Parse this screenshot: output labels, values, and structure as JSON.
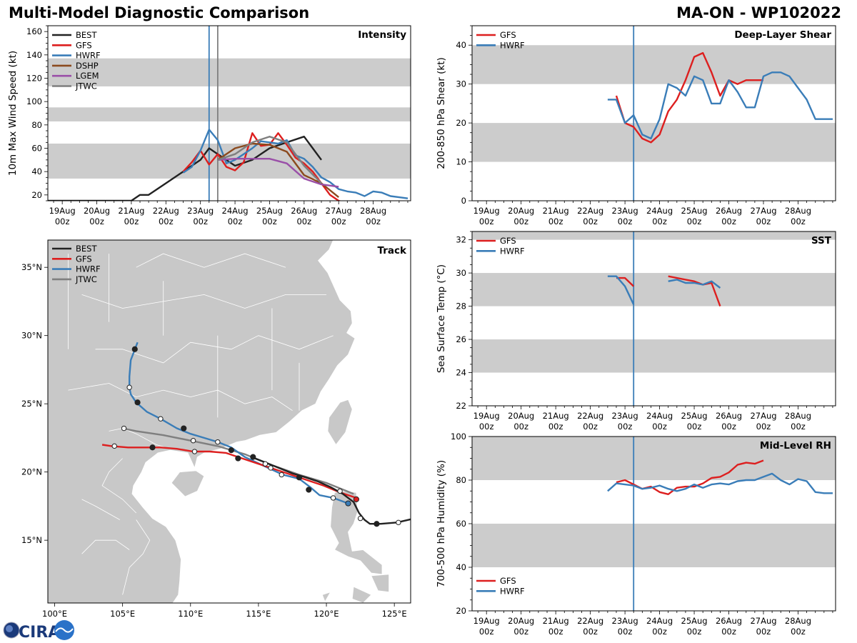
{
  "header": {
    "title": "Multi-Model Diagnostic Comparison",
    "storm": "MA-ON - WP102022"
  },
  "logo": {
    "text": "CIRA"
  },
  "colors": {
    "BEST": "#222222",
    "GFS": "#dd1f1f",
    "HWRF": "#3a7db8",
    "DSHP": "#8b4a1e",
    "LGEM": "#9a4fa8",
    "JTWC": "#7f7f7f",
    "band": "#cccccc",
    "land": "#c8c8c8",
    "border": "#ffffff"
  },
  "time_axis": {
    "ticks": [
      0,
      24,
      48,
      72,
      96,
      120,
      144,
      168,
      192,
      216
    ],
    "labels": [
      [
        "19Aug",
        "00z"
      ],
      [
        "20Aug",
        "00z"
      ],
      [
        "21Aug",
        "00z"
      ],
      [
        "22Aug",
        "00z"
      ],
      [
        "23Aug",
        "00z"
      ],
      [
        "24Aug",
        "00z"
      ],
      [
        "25Aug",
        "00z"
      ],
      [
        "26Aug",
        "00z"
      ],
      [
        "27Aug",
        "00z"
      ],
      [
        "28Aug",
        "00z"
      ]
    ],
    "range": [
      -10,
      242
    ]
  },
  "chart_data": [
    {
      "id": "intensity",
      "type": "line",
      "title": "Intensity",
      "ylabel": "10m Max Wind Speed (kt)",
      "xlabel": "",
      "ylim": [
        15,
        165
      ],
      "yticks": [
        20,
        40,
        60,
        80,
        100,
        120,
        140,
        160
      ],
      "bands": [
        [
          34,
          64
        ],
        [
          83,
          95
        ],
        [
          113,
          137
        ]
      ],
      "vlines": [
        {
          "x": 102,
          "color": "HWRF"
        },
        {
          "x": 108,
          "color": "JTWC"
        }
      ],
      "legend": "top-left",
      "series": [
        {
          "name": "BEST",
          "x": [
            -12,
            0,
            24,
            42,
            48,
            54,
            60,
            72,
            84,
            96,
            102,
            108,
            120,
            132,
            144,
            156,
            168,
            174,
            180
          ],
          "y": [
            15,
            15,
            15,
            15,
            15,
            20,
            20,
            30,
            40,
            50,
            60,
            55,
            45,
            50,
            60,
            65,
            70,
            60,
            50
          ]
        },
        {
          "name": "GFS",
          "x": [
            84,
            90,
            96,
            102,
            108,
            114,
            120,
            126,
            132,
            138,
            144,
            150,
            156,
            162,
            168,
            174,
            180,
            186,
            192,
            198
          ],
          "y": [
            40,
            48,
            58,
            46,
            55,
            44,
            41,
            48,
            73,
            62,
            63,
            73,
            63,
            52,
            47,
            40,
            30,
            20,
            15,
            13
          ]
        },
        {
          "name": "HWRF",
          "x": [
            84,
            90,
            96,
            102,
            108,
            114,
            120,
            126,
            132,
            138,
            144,
            150,
            156,
            162,
            168,
            174,
            180,
            186,
            192,
            198,
            204,
            210,
            216,
            222,
            228,
            234,
            240
          ],
          "y": [
            39,
            44,
            58,
            76,
            67,
            47,
            50,
            55,
            60,
            66,
            65,
            64,
            67,
            54,
            51,
            44,
            35,
            31,
            25,
            23,
            22,
            19,
            23,
            22,
            19,
            18,
            17
          ]
        },
        {
          "name": "DSHP",
          "x": [
            108,
            120,
            132,
            144,
            156,
            168,
            180,
            192
          ],
          "y": [
            50,
            60,
            64,
            63,
            57,
            37,
            30,
            18
          ]
        },
        {
          "name": "LGEM",
          "x": [
            108,
            120,
            132,
            144,
            156,
            168,
            180,
            192
          ],
          "y": [
            50,
            51,
            51,
            51,
            47,
            34,
            29,
            27
          ]
        },
        {
          "name": "JTWC",
          "x": [
            108,
            120,
            132,
            144,
            156,
            168,
            180
          ],
          "y": [
            50,
            55,
            65,
            70,
            65,
            45,
            30
          ]
        }
      ]
    },
    {
      "id": "shear",
      "type": "line",
      "title": "Deep-Layer Shear",
      "ylabel": "200-850 hPa Shear (kt)",
      "xlabel": "",
      "ylim": [
        0,
        45
      ],
      "yticks": [
        0,
        10,
        20,
        30,
        40
      ],
      "bands": [
        [
          10,
          20
        ],
        [
          30,
          40
        ]
      ],
      "vlines": [
        {
          "x": 102,
          "color": "HWRF"
        }
      ],
      "legend": "top-left",
      "series": [
        {
          "name": "GFS",
          "x": [
            90,
            96,
            102,
            108,
            114,
            120,
            126,
            132,
            138,
            144,
            150,
            156,
            162,
            168,
            174,
            180,
            186,
            192
          ],
          "y": [
            27,
            20,
            19,
            16,
            15,
            17,
            23,
            26,
            31,
            37,
            38,
            33,
            27,
            31,
            30,
            31,
            31,
            31
          ]
        },
        {
          "name": "HWRF",
          "x": [
            84,
            90,
            96,
            102,
            108,
            114,
            120,
            126,
            132,
            138,
            144,
            150,
            156,
            162,
            168,
            174,
            180,
            186,
            192,
            198,
            204,
            210,
            216,
            222,
            228,
            234,
            240
          ],
          "y": [
            26,
            26,
            20,
            22,
            17,
            16,
            21,
            30,
            29,
            27,
            32,
            31,
            25,
            25,
            31,
            28,
            24,
            24,
            32,
            33,
            33,
            32,
            29,
            26,
            21,
            21,
            21
          ]
        }
      ]
    },
    {
      "id": "sst",
      "type": "line",
      "title": "SST",
      "ylabel": "Sea Surface Temp (°C)",
      "xlabel": "",
      "ylim": [
        22,
        32.5
      ],
      "yticks": [
        22,
        24,
        26,
        28,
        30,
        32
      ],
      "bands": [
        [
          24,
          26
        ],
        [
          28,
          30
        ],
        [
          32,
          32.5
        ]
      ],
      "vlines": [
        {
          "x": 102,
          "color": "HWRF"
        }
      ],
      "legend": "top-left",
      "series": [
        {
          "name": "GFS",
          "segments": [
            {
              "x": [
                90,
                96,
                102
              ],
              "y": [
                29.7,
                29.7,
                29.2
              ]
            },
            {
              "x": [
                126,
                132,
                138,
                144,
                150,
                156,
                162
              ],
              "y": [
                29.8,
                29.7,
                29.6,
                29.5,
                29.3,
                29.4,
                28.0
              ]
            }
          ]
        },
        {
          "name": "HWRF",
          "segments": [
            {
              "x": [
                84,
                90,
                96,
                102
              ],
              "y": [
                29.8,
                29.8,
                29.2,
                28.1
              ]
            },
            {
              "x": [
                126,
                132,
                138,
                144,
                150,
                156,
                162
              ],
              "y": [
                29.5,
                29.6,
                29.4,
                29.4,
                29.3,
                29.5,
                29.1
              ]
            }
          ]
        }
      ]
    },
    {
      "id": "rh",
      "type": "line",
      "title": "Mid-Level RH",
      "ylabel": "700-500 hPa Humidity (%)",
      "xlabel": "",
      "ylim": [
        20,
        100
      ],
      "yticks": [
        20,
        40,
        60,
        80,
        100
      ],
      "bands": [
        [
          40,
          60
        ],
        [
          80,
          100
        ]
      ],
      "vlines": [
        {
          "x": 102,
          "color": "HWRF"
        }
      ],
      "legend": "bottom-left",
      "series": [
        {
          "name": "GFS",
          "x": [
            90,
            96,
            102,
            108,
            114,
            120,
            126,
            132,
            138,
            144,
            150,
            156,
            162,
            168,
            174,
            180,
            186,
            192
          ],
          "y": [
            79,
            80,
            78,
            76,
            77,
            74.5,
            73.5,
            76.5,
            77,
            77,
            78.5,
            81,
            81.5,
            83.5,
            87,
            88,
            87.5,
            89
          ]
        },
        {
          "name": "HWRF",
          "x": [
            84,
            90,
            96,
            102,
            108,
            114,
            120,
            126,
            132,
            138,
            144,
            150,
            156,
            162,
            168,
            174,
            180,
            186,
            192,
            198,
            204,
            210,
            216,
            222,
            228,
            234,
            240
          ],
          "y": [
            75,
            78.5,
            78,
            77.5,
            76,
            76.5,
            77.5,
            76,
            75,
            76,
            78,
            76.5,
            78,
            78.5,
            78,
            79.5,
            80,
            80,
            81.5,
            83,
            80,
            78,
            80.5,
            79.5,
            74.5,
            74,
            74
          ]
        }
      ]
    },
    {
      "id": "track",
      "type": "scatter",
      "title": "Track",
      "xlabel": "",
      "ylabel": "",
      "xlim": [
        99.5,
        126.2
      ],
      "ylim": [
        10.4,
        37.0
      ],
      "xticks": [
        100,
        105,
        110,
        115,
        120,
        125
      ],
      "xtick_labels": [
        "100°E",
        "105°E",
        "110°E",
        "115°E",
        "120°E",
        "125°E"
      ],
      "yticks": [
        15,
        20,
        25,
        30,
        35
      ],
      "ytick_labels": [
        "15°N",
        "20°N",
        "25°N",
        "30°N",
        "35°N"
      ],
      "legend": "top-left",
      "series": [
        {
          "name": "BEST",
          "lon": [
            126.5,
            125.2,
            124.0,
            123.2,
            122.8,
            122.4,
            122.0,
            121.2,
            120.3,
            119.4,
            118.5,
            117.5,
            116.5,
            115.5,
            114.5
          ],
          "lat": [
            16.6,
            16.3,
            16.2,
            16.2,
            16.5,
            17.0,
            17.8,
            18.4,
            18.9,
            19.3,
            19.6,
            19.9,
            20.3,
            20.7,
            21.1
          ]
        },
        {
          "name": "GFS",
          "lon": [
            122.2,
            121.0,
            119.8,
            118.6,
            117.4,
            116.2,
            115.0,
            113.8,
            112.6,
            111.4,
            110.2,
            109.0,
            107.8,
            106.6,
            105.4,
            104.2,
            103.5
          ],
          "lat": [
            18.1,
            18.5,
            19.0,
            19.4,
            19.8,
            20.2,
            20.6,
            21.0,
            21.4,
            21.5,
            21.5,
            21.7,
            21.8,
            21.8,
            21.8,
            21.9,
            22.0
          ]
        },
        {
          "name": "HWRF",
          "lon": [
            121.6,
            120.5,
            119.5,
            118.8,
            118.0,
            116.8,
            115.5,
            114.0,
            113.0,
            112.0,
            111.0,
            110.0,
            109.0,
            107.8,
            106.8,
            106.0,
            105.6,
            105.5,
            105.5,
            105.6,
            106.1
          ],
          "lat": [
            17.7,
            18.1,
            18.3,
            18.9,
            19.5,
            19.8,
            20.4,
            21.1,
            21.8,
            22.2,
            22.5,
            22.8,
            23.2,
            23.9,
            24.4,
            25.1,
            25.7,
            26.2,
            27.0,
            28.2,
            29.5
          ]
        },
        {
          "name": "JTWC",
          "lon": [
            122.0,
            120.0,
            118.0,
            116.0,
            114.0,
            112.0,
            110.0,
            108.0,
            106.0,
            105.0
          ],
          "lat": [
            18.4,
            19.2,
            19.8,
            20.5,
            21.3,
            21.9,
            22.3,
            22.7,
            23.0,
            23.2
          ]
        }
      ],
      "markers": [
        {
          "series": "BEST",
          "lon": 123.7,
          "lat": 16.2,
          "fill": "black"
        },
        {
          "series": "BEST",
          "lon": 118.7,
          "lat": 18.7,
          "fill": "black"
        },
        {
          "series": "BEST",
          "lon": 118.0,
          "lat": 19.6,
          "fill": "black"
        },
        {
          "series": "BEST",
          "lon": 114.6,
          "lat": 21.1,
          "fill": "black"
        },
        {
          "series": "BEST",
          "lon": 113.5,
          "lat": 21.0,
          "fill": "black"
        },
        {
          "series": "BEST",
          "lon": 113.0,
          "lat": 21.6,
          "fill": "black"
        },
        {
          "series": "BEST",
          "lon": 109.5,
          "lat": 23.2,
          "fill": "black"
        },
        {
          "series": "BEST",
          "lon": 107.2,
          "lat": 21.8,
          "fill": "black"
        },
        {
          "series": "BEST",
          "lon": 106.1,
          "lat": 25.1,
          "fill": "black"
        },
        {
          "series": "BEST",
          "lon": 105.9,
          "lat": 29.0,
          "fill": "black"
        },
        {
          "series": "BEST",
          "lon": 125.3,
          "lat": 16.3,
          "fill": "white"
        },
        {
          "series": "BEST",
          "lon": 122.5,
          "lat": 16.6,
          "fill": "white"
        },
        {
          "series": "BEST",
          "lon": 121.0,
          "lat": 18.6,
          "fill": "white"
        },
        {
          "series": "BEST",
          "lon": 120.5,
          "lat": 18.1,
          "fill": "white"
        },
        {
          "series": "BEST",
          "lon": 116.7,
          "lat": 19.8,
          "fill": "white"
        },
        {
          "series": "BEST",
          "lon": 115.9,
          "lat": 20.3,
          "fill": "white"
        },
        {
          "series": "BEST",
          "lon": 115.5,
          "lat": 20.6,
          "fill": "white"
        },
        {
          "series": "BEST",
          "lon": 112.0,
          "lat": 22.2,
          "fill": "white"
        },
        {
          "series": "BEST",
          "lon": 110.2,
          "lat": 22.3,
          "fill": "white"
        },
        {
          "series": "BEST",
          "lon": 110.3,
          "lat": 21.5,
          "fill": "white"
        },
        {
          "series": "BEST",
          "lon": 107.8,
          "lat": 23.9,
          "fill": "white"
        },
        {
          "series": "BEST",
          "lon": 105.5,
          "lat": 26.2,
          "fill": "white"
        },
        {
          "series": "BEST",
          "lon": 105.1,
          "lat": 23.2,
          "fill": "white"
        },
        {
          "series": "BEST",
          "lon": 104.4,
          "lat": 21.9,
          "fill": "white"
        },
        {
          "series": "GFS",
          "lon": 122.2,
          "lat": 18.0,
          "fill": "#dd1f1f"
        },
        {
          "series": "HWRF",
          "lon": 121.6,
          "lat": 17.7,
          "fill": "#3a7db8"
        }
      ]
    }
  ]
}
